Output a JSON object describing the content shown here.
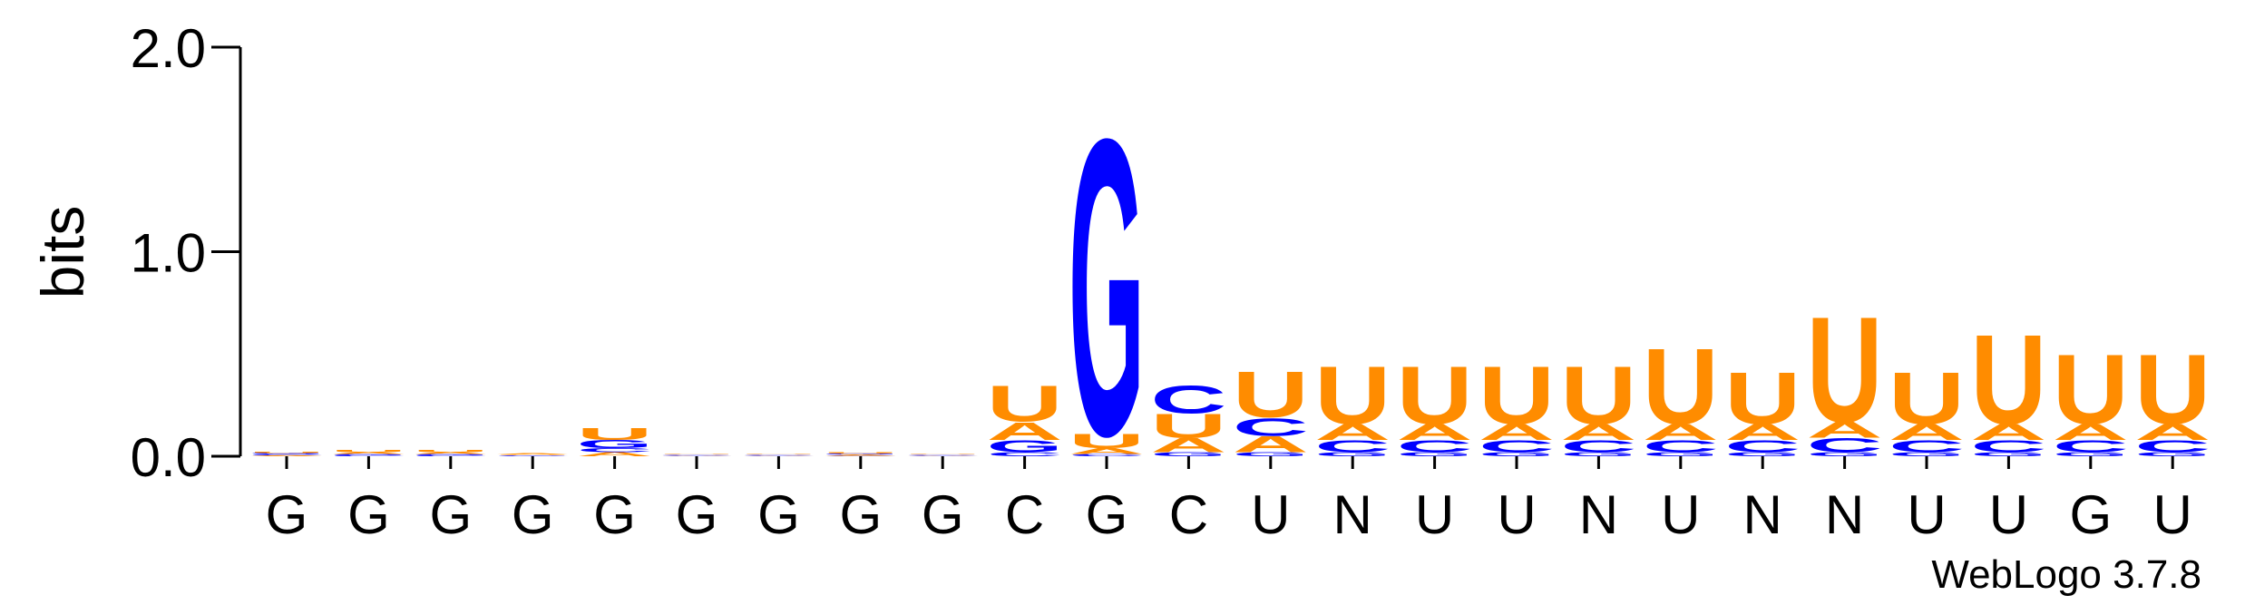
{
  "chart_data": {
    "type": "logo",
    "ylabel": "bits",
    "footer": "WebLogo 3.7.8",
    "categories": [
      "G",
      "G",
      "G",
      "G",
      "G",
      "G",
      "G",
      "G",
      "G",
      "C",
      "G",
      "C",
      "U",
      "N",
      "U",
      "U",
      "N",
      "U",
      "N",
      "N",
      "U",
      "U",
      "G",
      "U"
    ],
    "ylim": [
      0,
      2
    ],
    "yticks": [
      {
        "value": 0,
        "label": "0.0"
      },
      {
        "value": 1,
        "label": "1.0"
      },
      {
        "value": 2,
        "label": "2.0"
      }
    ],
    "series": [
      {
        "name": "A",
        "color": "#ff8c00",
        "values": [
          0.005,
          0.01,
          0.01,
          0.005,
          0.02,
          0.003,
          0.003,
          0.005,
          0.003,
          0.09,
          0.03,
          0.07,
          0.08,
          0.08,
          0.08,
          0.08,
          0.08,
          0.08,
          0.08,
          0.08,
          0.08,
          0.08,
          0.08,
          0.08
        ]
      },
      {
        "name": "C",
        "color": "#0000ff",
        "values": [
          0.005,
          0.005,
          0.005,
          0.003,
          0.02,
          0.003,
          0.003,
          0.003,
          0.003,
          0.02,
          0.01,
          0.14,
          0.09,
          0.06,
          0.06,
          0.06,
          0.06,
          0.06,
          0.06,
          0.07,
          0.06,
          0.06,
          0.06,
          0.06
        ]
      },
      {
        "name": "G",
        "color": "#0000ff",
        "values": [
          0.005,
          0.005,
          0.005,
          0.003,
          0.04,
          0.003,
          0.003,
          0.005,
          0.003,
          0.06,
          1.49,
          0.02,
          0.02,
          0.02,
          0.02,
          0.02,
          0.02,
          0.02,
          0.02,
          0.02,
          0.02,
          0.02,
          0.02,
          0.02
        ]
      },
      {
        "name": "U",
        "color": "#ff8c00",
        "values": [
          0.005,
          0.01,
          0.01,
          0.003,
          0.06,
          0.003,
          0.003,
          0.005,
          0.003,
          0.18,
          0.07,
          0.12,
          0.23,
          0.29,
          0.29,
          0.29,
          0.29,
          0.38,
          0.26,
          0.53,
          0.26,
          0.45,
          0.35,
          0.35
        ]
      }
    ]
  }
}
